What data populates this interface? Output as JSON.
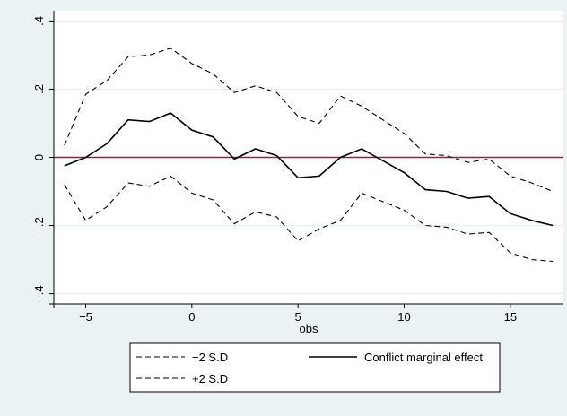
{
  "chart_data": {
    "type": "line",
    "title": "",
    "xlabel": "obs",
    "ylabel": "",
    "xlim": [
      -6.5,
      17.5
    ],
    "ylim": [
      -0.43,
      0.43
    ],
    "x_ticks": [
      -5,
      0,
      5,
      10,
      15
    ],
    "x_tick_labels": [
      "−5",
      "0",
      "5",
      "10",
      "15"
    ],
    "y_ticks": [
      -0.4,
      -0.2,
      0,
      0.2,
      0.4
    ],
    "y_tick_labels": [
      "−.4",
      "−.2",
      "0",
      ".2",
      ".4"
    ],
    "grid": true,
    "legend_position": "bottom",
    "reference_line": {
      "y": 0,
      "color": "#9b1b4a"
    },
    "x": [
      -6,
      -5,
      -4,
      -3,
      -2,
      -1,
      0,
      1,
      2,
      3,
      4,
      5,
      6,
      7,
      8,
      9,
      10,
      11,
      12,
      13,
      14,
      15,
      16,
      17
    ],
    "series": [
      {
        "name": "−2 S.D",
        "style": "dashed",
        "color": "#000000",
        "values": [
          -0.08,
          -0.185,
          -0.145,
          -0.075,
          -0.085,
          -0.055,
          -0.105,
          -0.125,
          -0.195,
          -0.16,
          -0.175,
          -0.245,
          -0.21,
          -0.185,
          -0.105,
          -0.13,
          -0.155,
          -0.2,
          -0.205,
          -0.225,
          -0.22,
          -0.28,
          -0.3,
          -0.305
        ]
      },
      {
        "name": "Conflict marginal effect",
        "style": "solid",
        "color": "#000000",
        "values": [
          -0.025,
          0.0,
          0.04,
          0.11,
          0.105,
          0.13,
          0.08,
          0.06,
          -0.005,
          0.025,
          0.005,
          -0.06,
          -0.055,
          0.0,
          0.025,
          -0.01,
          -0.045,
          -0.095,
          -0.1,
          -0.12,
          -0.115,
          -0.165,
          -0.185,
          -0.2
        ]
      },
      {
        "name": "+2 S.D",
        "style": "dashed",
        "color": "#000000",
        "values": [
          0.035,
          0.185,
          0.225,
          0.295,
          0.3,
          0.32,
          0.275,
          0.245,
          0.19,
          0.21,
          0.19,
          0.12,
          0.1,
          0.18,
          0.15,
          0.11,
          0.07,
          0.01,
          0.005,
          -0.015,
          -0.005,
          -0.055,
          -0.075,
          -0.1
        ]
      }
    ]
  },
  "colors": {
    "background": "#eaf2f3",
    "plot_background": "#ffffff",
    "gridline": "#e6eef0",
    "zero_line": "#9b1b4a",
    "series": "#000000"
  }
}
